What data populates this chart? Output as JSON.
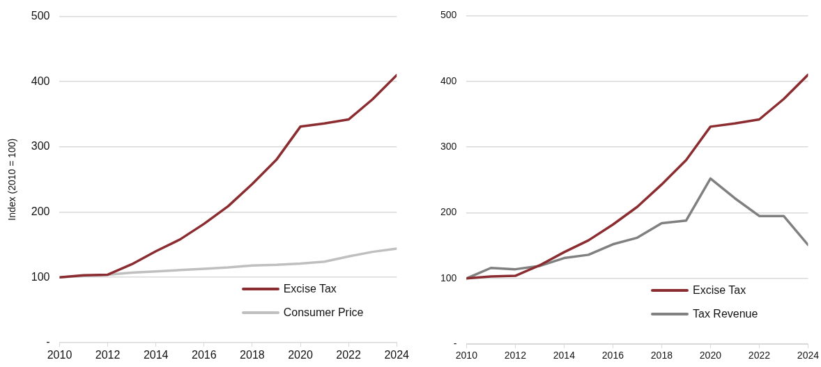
{
  "chart_data": [
    {
      "type": "line",
      "ylabel": "Index (2010 = 100)",
      "x": [
        2010,
        2011,
        2012,
        2013,
        2014,
        2015,
        2016,
        2017,
        2018,
        2019,
        2020,
        2021,
        2022,
        2023,
        2024
      ],
      "series": [
        {
          "name": "Excise Tax",
          "color": "#8b2c31",
          "values": [
            100,
            103,
            104,
            120,
            140,
            158,
            182,
            209,
            243,
            280,
            331,
            336,
            342,
            373,
            410
          ]
        },
        {
          "name": "Consumer Price",
          "color": "#bfbfbf",
          "values": [
            100,
            102,
            104,
            107,
            109,
            111,
            113,
            115,
            118,
            119,
            121,
            124,
            132,
            139,
            144
          ]
        }
      ],
      "xlim": [
        2010,
        2024
      ],
      "xticks": [
        2010,
        2012,
        2014,
        2016,
        2018,
        2020,
        2022,
        2024
      ],
      "ylim": [
        0,
        500
      ],
      "yticks": [
        {
          "value": 0,
          "label": "-"
        },
        100,
        200,
        300,
        400,
        500
      ],
      "grid": "y",
      "legend": "bottom",
      "marker": "none",
      "line_style": "solid"
    },
    {
      "type": "line",
      "x": [
        2010,
        2011,
        2012,
        2013,
        2014,
        2015,
        2016,
        2017,
        2018,
        2019,
        2020,
        2021,
        2022,
        2023,
        2024
      ],
      "series": [
        {
          "name": "Excise Tax",
          "color": "#8b2c31",
          "values": [
            100,
            103,
            104,
            120,
            140,
            158,
            182,
            209,
            243,
            280,
            331,
            336,
            342,
            373,
            410
          ]
        },
        {
          "name": "Tax Revenue",
          "color": "#808080",
          "values": [
            100,
            116,
            114,
            119,
            131,
            136,
            152,
            162,
            184,
            188,
            252,
            222,
            195,
            195,
            151
          ]
        }
      ],
      "xlim": [
        2010,
        2024
      ],
      "xticks": [
        2010,
        2012,
        2014,
        2016,
        2018,
        2020,
        2022,
        2024
      ],
      "ylim": [
        0,
        500
      ],
      "yticks": [
        {
          "value": 0,
          "label": "-"
        },
        100,
        200,
        300,
        400,
        500
      ],
      "grid": "y",
      "legend": "bottom",
      "marker": "none",
      "line_style": "solid"
    }
  ]
}
